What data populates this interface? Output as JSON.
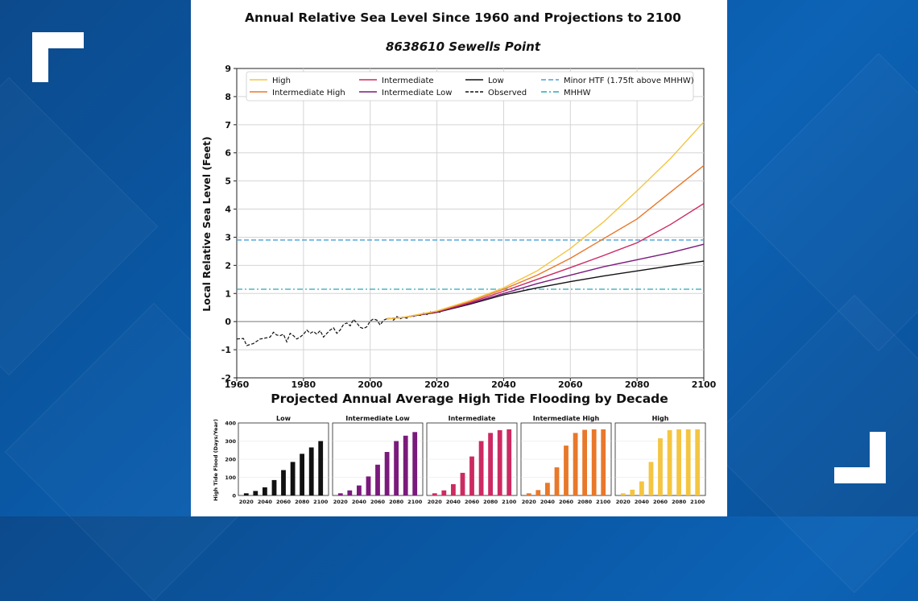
{
  "main_title": "Annual Relative Sea Level Since 1960 and Projections to 2100",
  "subtitle": "8638610 Sewells Point",
  "bar_title": "Projected Annual Average High Tide Flooding by Decade",
  "colors": {
    "high": "#f4c542",
    "intermediate_high": "#e8782a",
    "intermediate": "#cc2a62",
    "intermediate_low": "#7a1a7c",
    "low": "#111111",
    "observed": "#111111",
    "minor_htf": "#4aa0d8",
    "mhhw": "#2aa8b8",
    "background_brand": "#0a5aa8"
  },
  "chart_data": [
    {
      "type": "line",
      "title": "",
      "xlabel": "",
      "ylabel": "Local Relative Sea Level (Feet)",
      "xlim": [
        1960,
        2100
      ],
      "ylim": [
        -2,
        9
      ],
      "x_ticks": [
        "1960",
        "1980",
        "2000",
        "2020",
        "2040",
        "2060",
        "2080",
        "2100"
      ],
      "y_ticks": [
        "-2",
        "-1",
        "0",
        "1",
        "2",
        "3",
        "4",
        "5",
        "6",
        "7",
        "8",
        "9"
      ],
      "grid": true,
      "legend_position": "top",
      "legend": [
        "High",
        "Intermediate High",
        "Intermediate",
        "Intermediate Low",
        "Low",
        "Observed",
        "Minor HTF (1.75ft above MHHW)",
        "MHHW"
      ],
      "x": [
        2005,
        2010,
        2020,
        2030,
        2040,
        2050,
        2060,
        2070,
        2080,
        2090,
        2100
      ],
      "series": [
        {
          "name": "High",
          "color_key": "high",
          "style": "solid",
          "values": [
            0.1,
            0.15,
            0.38,
            0.75,
            1.2,
            1.8,
            2.6,
            3.55,
            4.65,
            5.8,
            7.1
          ]
        },
        {
          "name": "Intermediate High",
          "color_key": "intermediate_high",
          "style": "solid",
          "values": [
            0.1,
            0.15,
            0.37,
            0.72,
            1.15,
            1.65,
            2.25,
            2.95,
            3.65,
            4.6,
            5.55
          ]
        },
        {
          "name": "Intermediate",
          "color_key": "intermediate",
          "style": "solid",
          "values": [
            0.1,
            0.15,
            0.35,
            0.68,
            1.08,
            1.5,
            1.92,
            2.35,
            2.8,
            3.45,
            4.2
          ]
        },
        {
          "name": "Intermediate Low",
          "color_key": "intermediate_low",
          "style": "solid",
          "values": [
            0.1,
            0.15,
            0.34,
            0.65,
            1.0,
            1.35,
            1.65,
            1.95,
            2.2,
            2.45,
            2.75
          ]
        },
        {
          "name": "Low",
          "color_key": "low",
          "style": "solid",
          "values": [
            0.1,
            0.15,
            0.33,
            0.62,
            0.95,
            1.2,
            1.42,
            1.62,
            1.8,
            1.98,
            2.15
          ]
        }
      ],
      "observed": {
        "name": "Observed",
        "x": [
          1960,
          1962,
          1963,
          1965,
          1967,
          1968,
          1970,
          1971,
          1972,
          1973,
          1974,
          1975,
          1976,
          1977,
          1978,
          1979,
          1980,
          1981,
          1982,
          1983,
          1984,
          1985,
          1986,
          1987,
          1988,
          1989,
          1990,
          1991,
          1992,
          1993,
          1994,
          1995,
          1996,
          1997,
          1998,
          1999,
          2000,
          2001,
          2002,
          2003,
          2004,
          2005,
          2006,
          2007,
          2008,
          2009,
          2010,
          2011,
          2012,
          2013,
          2014,
          2015,
          2016,
          2017,
          2018,
          2019,
          2020,
          2021
        ],
        "values": [
          -0.62,
          -0.6,
          -0.85,
          -0.78,
          -0.62,
          -0.6,
          -0.55,
          -0.38,
          -0.48,
          -0.5,
          -0.45,
          -0.72,
          -0.42,
          -0.5,
          -0.62,
          -0.55,
          -0.45,
          -0.3,
          -0.42,
          -0.35,
          -0.45,
          -0.32,
          -0.55,
          -0.42,
          -0.3,
          -0.22,
          -0.42,
          -0.3,
          -0.1,
          -0.05,
          -0.15,
          0.08,
          -0.05,
          -0.2,
          -0.25,
          -0.18,
          0.02,
          0.1,
          0.05,
          -0.12,
          0.05,
          0.1,
          0.12,
          0.05,
          0.18,
          0.1,
          0.15,
          0.12,
          0.2,
          0.18,
          0.25,
          0.22,
          0.3,
          0.25,
          0.35,
          0.28,
          0.38,
          0.32
        ]
      },
      "reference_lines": [
        {
          "name": "Minor HTF (1.75ft above MHHW)",
          "value": 2.9,
          "color_key": "minor_htf",
          "style": "dashed"
        },
        {
          "name": "MHHW",
          "value": 1.15,
          "color_key": "mhhw",
          "style": "dashdot"
        }
      ]
    },
    {
      "type": "bar",
      "title": "Low",
      "ylabel": "High Tide Flood (Days/Year)",
      "ylim": [
        0,
        400
      ],
      "y_ticks": [
        "0",
        "100",
        "200",
        "300",
        "400"
      ],
      "x_ticks": [
        "2020",
        "2040",
        "2060",
        "2080",
        "2100"
      ],
      "categories": [
        "2020",
        "2030",
        "2040",
        "2050",
        "2060",
        "2070",
        "2080",
        "2090",
        "2100"
      ],
      "values": [
        12,
        25,
        45,
        85,
        140,
        185,
        230,
        265,
        300
      ],
      "color_key": "low"
    },
    {
      "type": "bar",
      "title": "Intermediate Low",
      "ylim": [
        0,
        400
      ],
      "x_ticks": [
        "2020",
        "2040",
        "2060",
        "2080",
        "2100"
      ],
      "categories": [
        "2020",
        "2030",
        "2040",
        "2050",
        "2060",
        "2070",
        "2080",
        "2090",
        "2100"
      ],
      "values": [
        12,
        28,
        55,
        105,
        170,
        240,
        300,
        330,
        350
      ],
      "color_key": "intermediate_low"
    },
    {
      "type": "bar",
      "title": "Intermediate",
      "ylim": [
        0,
        400
      ],
      "x_ticks": [
        "2020",
        "2040",
        "2060",
        "2080",
        "2100"
      ],
      "categories": [
        "2020",
        "2030",
        "2040",
        "2050",
        "2060",
        "2070",
        "2080",
        "2090",
        "2100"
      ],
      "values": [
        12,
        28,
        62,
        125,
        215,
        300,
        345,
        360,
        365
      ],
      "color_key": "intermediate"
    },
    {
      "type": "bar",
      "title": "Intermediate High",
      "ylim": [
        0,
        400
      ],
      "x_ticks": [
        "2020",
        "2040",
        "2060",
        "2080",
        "2100"
      ],
      "categories": [
        "2020",
        "2030",
        "2040",
        "2050",
        "2060",
        "2070",
        "2080",
        "2090",
        "2100"
      ],
      "values": [
        12,
        30,
        70,
        155,
        275,
        345,
        362,
        365,
        365
      ],
      "color_key": "intermediate_high"
    },
    {
      "type": "bar",
      "title": "High",
      "ylim": [
        0,
        400
      ],
      "x_ticks": [
        "2020",
        "2040",
        "2060",
        "2080",
        "2100"
      ],
      "categories": [
        "2020",
        "2030",
        "2040",
        "2050",
        "2060",
        "2070",
        "2080",
        "2090",
        "2100"
      ],
      "values": [
        12,
        32,
        78,
        185,
        315,
        360,
        365,
        365,
        365
      ],
      "color_key": "high"
    }
  ]
}
